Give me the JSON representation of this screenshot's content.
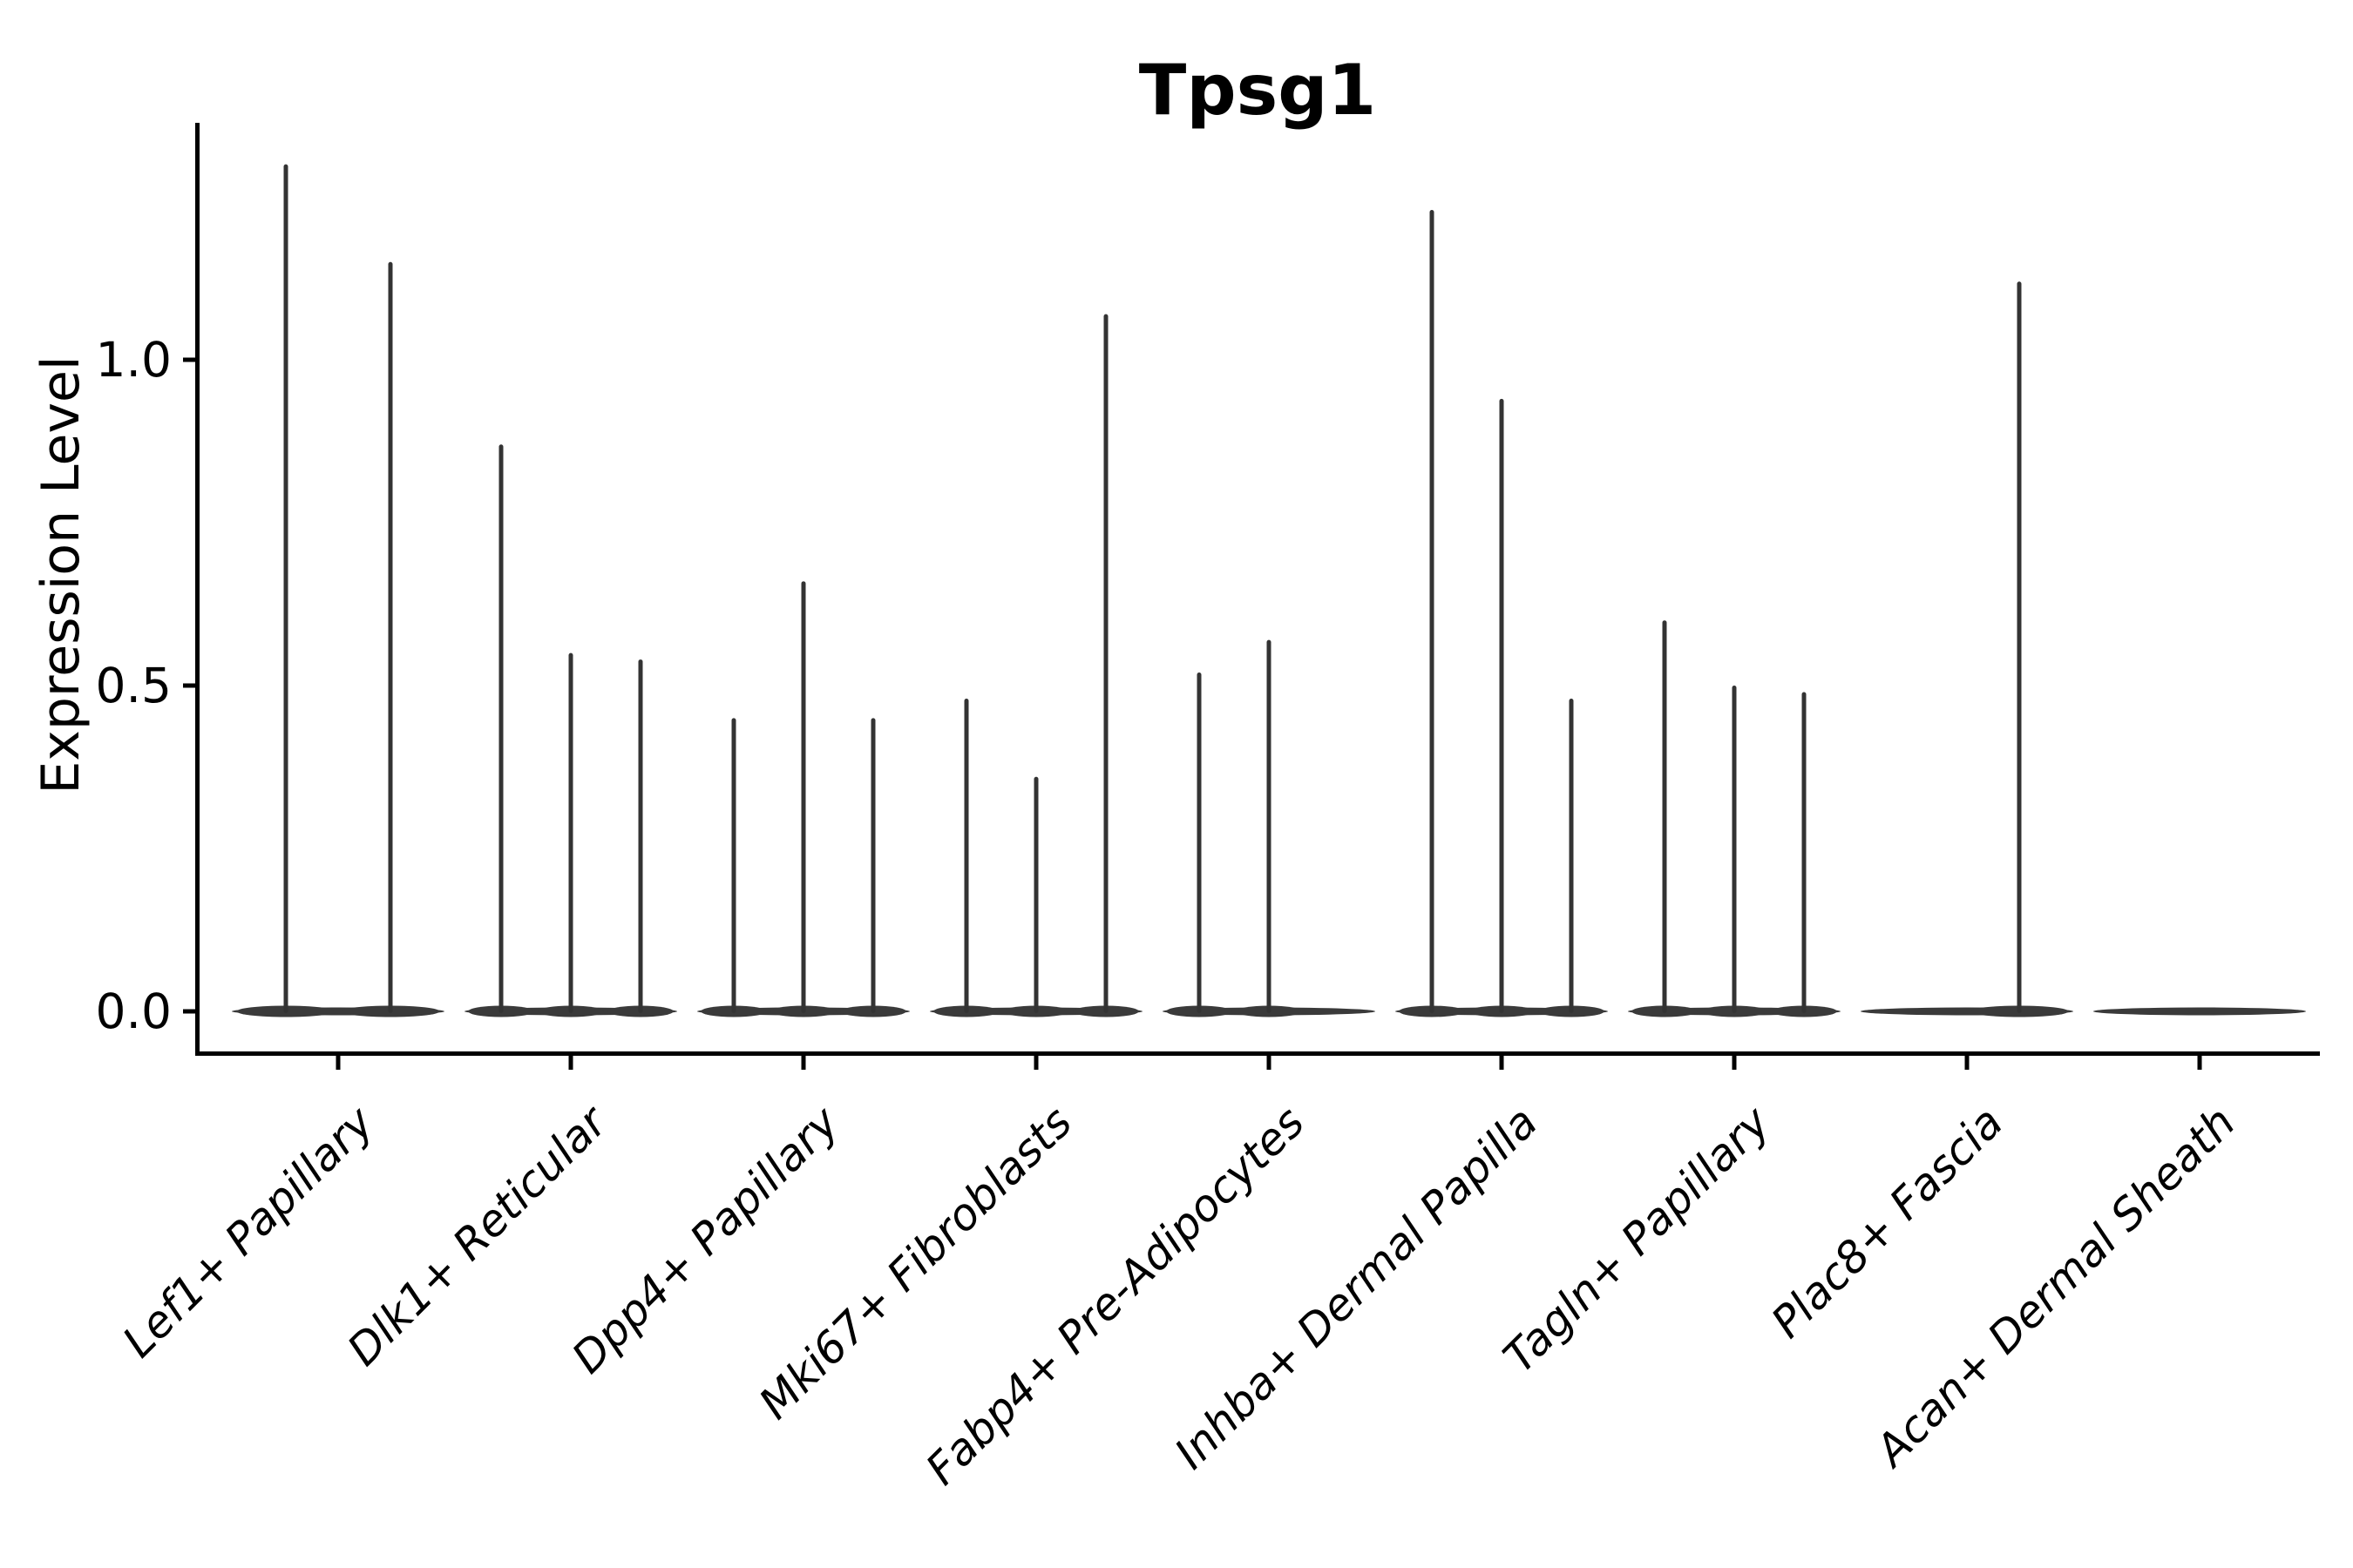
{
  "title": "Tpsg1",
  "y_axis": {
    "label": "Expression Level",
    "ticks": [
      {
        "label": "0.0",
        "value": 0.0
      },
      {
        "label": "0.5",
        "value": 0.5
      },
      {
        "label": "1.0",
        "value": 1.0
      }
    ]
  },
  "colors": {
    "axis": "#000000",
    "violin_line": "#333333",
    "violin_base": "#3a3a3a",
    "background": "#ffffff"
  },
  "chart_data": {
    "type": "violin",
    "title": "Tpsg1",
    "xlabel": "",
    "ylabel": "Expression Level",
    "ylim": [
      -0.07,
      1.36
    ],
    "yticks": [
      0.0,
      0.5,
      1.0
    ],
    "grid": false,
    "legend": "none",
    "categories": [
      "Lef1+ Papillary",
      "Dlk1+ Reticular",
      "Dpp4+ Papillary",
      "Mki67+ Fibroblasts",
      "Fabp4+ Pre-Adipocytes",
      "Inhba+ Dermal Papilla",
      "Tagln+ Papillary",
      "Plac8+ Fascia",
      "Acan+ Dermal Sheath"
    ],
    "description": "Each category shows 2-3 very thin split violins collapsed at 0 with narrow spikes; values below are the maximum expression reached by each violin spike (0 = flat violin, no spike).",
    "series": [
      {
        "category": "Lef1+ Papillary",
        "violin_maxima": [
          1.3,
          1.15
        ]
      },
      {
        "category": "Dlk1+ Reticular",
        "violin_maxima": [
          0.87,
          0.55,
          0.54
        ]
      },
      {
        "category": "Dpp4+ Papillary",
        "violin_maxima": [
          0.45,
          0.66,
          0.45
        ]
      },
      {
        "category": "Mki67+ Fibroblasts",
        "violin_maxima": [
          0.48,
          0.36,
          1.07
        ]
      },
      {
        "category": "Fabp4+ Pre-Adipocytes",
        "violin_maxima": [
          0.52,
          0.57,
          0
        ]
      },
      {
        "category": "Inhba+ Dermal Papilla",
        "violin_maxima": [
          1.23,
          0.94,
          0.48
        ]
      },
      {
        "category": "Tagln+ Papillary",
        "violin_maxima": [
          0.6,
          0.5,
          0.49
        ]
      },
      {
        "category": "Plac8+ Fascia",
        "violin_maxima": [
          0,
          1.12
        ]
      },
      {
        "category": "Acan+ Dermal Sheath",
        "violin_maxima": [
          0,
          0,
          0
        ]
      }
    ]
  }
}
